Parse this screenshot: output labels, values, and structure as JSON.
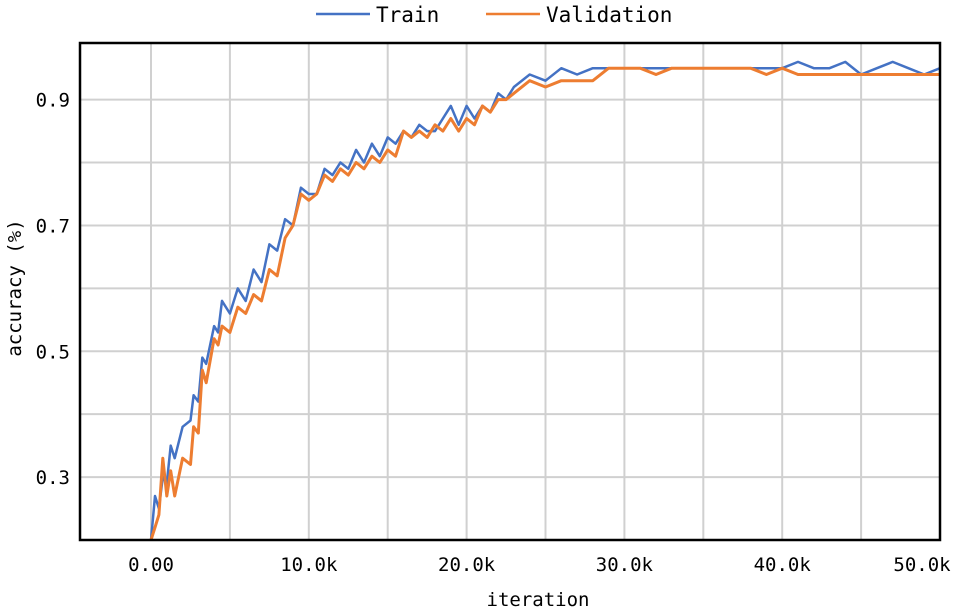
{
  "chart_data": {
    "type": "line",
    "title": "",
    "xlabel": "iteration",
    "ylabel": "accuracy (%)",
    "xlim": [
      -4500,
      50000
    ],
    "ylim": [
      0.2,
      0.99
    ],
    "x_ticks": [
      0,
      10000,
      20000,
      30000,
      40000,
      50000
    ],
    "x_tick_labels": [
      "0.00",
      "10.0k",
      "20.0k",
      "30.0k",
      "40.0k",
      "50.0k"
    ],
    "y_ticks": [
      0.3,
      0.5,
      0.7,
      0.9
    ],
    "y_tick_labels": [
      "0.3",
      "0.5",
      "0.7",
      "0.9"
    ],
    "grid": true,
    "legend_position": "top",
    "colors": {
      "Train": "#4472C4",
      "Validation": "#ED7D31",
      "grid": "#d0d0d0",
      "frame": "#000000"
    },
    "series": [
      {
        "name": "Train",
        "x": [
          0,
          250,
          500,
          750,
          1000,
          1250,
          1500,
          2000,
          2500,
          2700,
          3000,
          3250,
          3500,
          4000,
          4250,
          4500,
          5000,
          5500,
          6000,
          6500,
          7000,
          7500,
          8000,
          8500,
          9000,
          9500,
          10000,
          10500,
          11000,
          11500,
          12000,
          12500,
          13000,
          13500,
          14000,
          14500,
          15000,
          15500,
          16000,
          16500,
          17000,
          17500,
          18000,
          18500,
          19000,
          19500,
          20000,
          20500,
          21000,
          21500,
          22000,
          22500,
          23000,
          24000,
          25000,
          26000,
          27000,
          28000,
          29000,
          30000,
          31000,
          32000,
          33000,
          34000,
          35000,
          36000,
          37000,
          38000,
          39000,
          40000,
          41000,
          42000,
          43000,
          44000,
          45000,
          46000,
          47000,
          48000,
          49000,
          50000
        ],
        "values": [
          0.2,
          0.27,
          0.25,
          0.3,
          0.29,
          0.35,
          0.33,
          0.38,
          0.39,
          0.43,
          0.42,
          0.49,
          0.48,
          0.54,
          0.53,
          0.58,
          0.56,
          0.6,
          0.58,
          0.63,
          0.61,
          0.67,
          0.66,
          0.71,
          0.7,
          0.76,
          0.75,
          0.75,
          0.79,
          0.78,
          0.8,
          0.79,
          0.82,
          0.8,
          0.83,
          0.81,
          0.84,
          0.83,
          0.85,
          0.84,
          0.86,
          0.85,
          0.85,
          0.87,
          0.89,
          0.86,
          0.89,
          0.87,
          0.89,
          0.88,
          0.91,
          0.9,
          0.92,
          0.94,
          0.93,
          0.95,
          0.94,
          0.95,
          0.95,
          0.95,
          0.95,
          0.95,
          0.95,
          0.95,
          0.95,
          0.95,
          0.95,
          0.95,
          0.95,
          0.95,
          0.96,
          0.95,
          0.95,
          0.96,
          0.94,
          0.95,
          0.96,
          0.95,
          0.94,
          0.95
        ]
      },
      {
        "name": "Validation",
        "x": [
          0,
          250,
          500,
          750,
          1000,
          1250,
          1500,
          2000,
          2500,
          2700,
          3000,
          3250,
          3500,
          4000,
          4250,
          4500,
          5000,
          5500,
          6000,
          6500,
          7000,
          7500,
          8000,
          8500,
          9000,
          9500,
          10000,
          10500,
          11000,
          11500,
          12000,
          12500,
          13000,
          13500,
          14000,
          14500,
          15000,
          15500,
          16000,
          16500,
          17000,
          17500,
          18000,
          18500,
          19000,
          19500,
          20000,
          20500,
          21000,
          21500,
          22000,
          22500,
          23000,
          24000,
          25000,
          26000,
          27000,
          28000,
          29000,
          30000,
          31000,
          32000,
          33000,
          34000,
          35000,
          36000,
          37000,
          38000,
          39000,
          40000,
          41000,
          42000,
          43000,
          44000,
          45000,
          46000,
          47000,
          48000,
          49000,
          50000
        ],
        "values": [
          0.2,
          0.22,
          0.24,
          0.33,
          0.27,
          0.31,
          0.27,
          0.33,
          0.32,
          0.38,
          0.37,
          0.47,
          0.45,
          0.52,
          0.51,
          0.54,
          0.53,
          0.57,
          0.56,
          0.59,
          0.58,
          0.63,
          0.62,
          0.68,
          0.7,
          0.75,
          0.74,
          0.75,
          0.78,
          0.77,
          0.79,
          0.78,
          0.8,
          0.79,
          0.81,
          0.8,
          0.82,
          0.81,
          0.85,
          0.84,
          0.85,
          0.84,
          0.86,
          0.85,
          0.87,
          0.85,
          0.87,
          0.86,
          0.89,
          0.88,
          0.9,
          0.9,
          0.91,
          0.93,
          0.92,
          0.93,
          0.93,
          0.93,
          0.95,
          0.95,
          0.95,
          0.94,
          0.95,
          0.95,
          0.95,
          0.95,
          0.95,
          0.95,
          0.94,
          0.95,
          0.94,
          0.94,
          0.94,
          0.94,
          0.94,
          0.94,
          0.94,
          0.94,
          0.94,
          0.94
        ]
      }
    ]
  }
}
